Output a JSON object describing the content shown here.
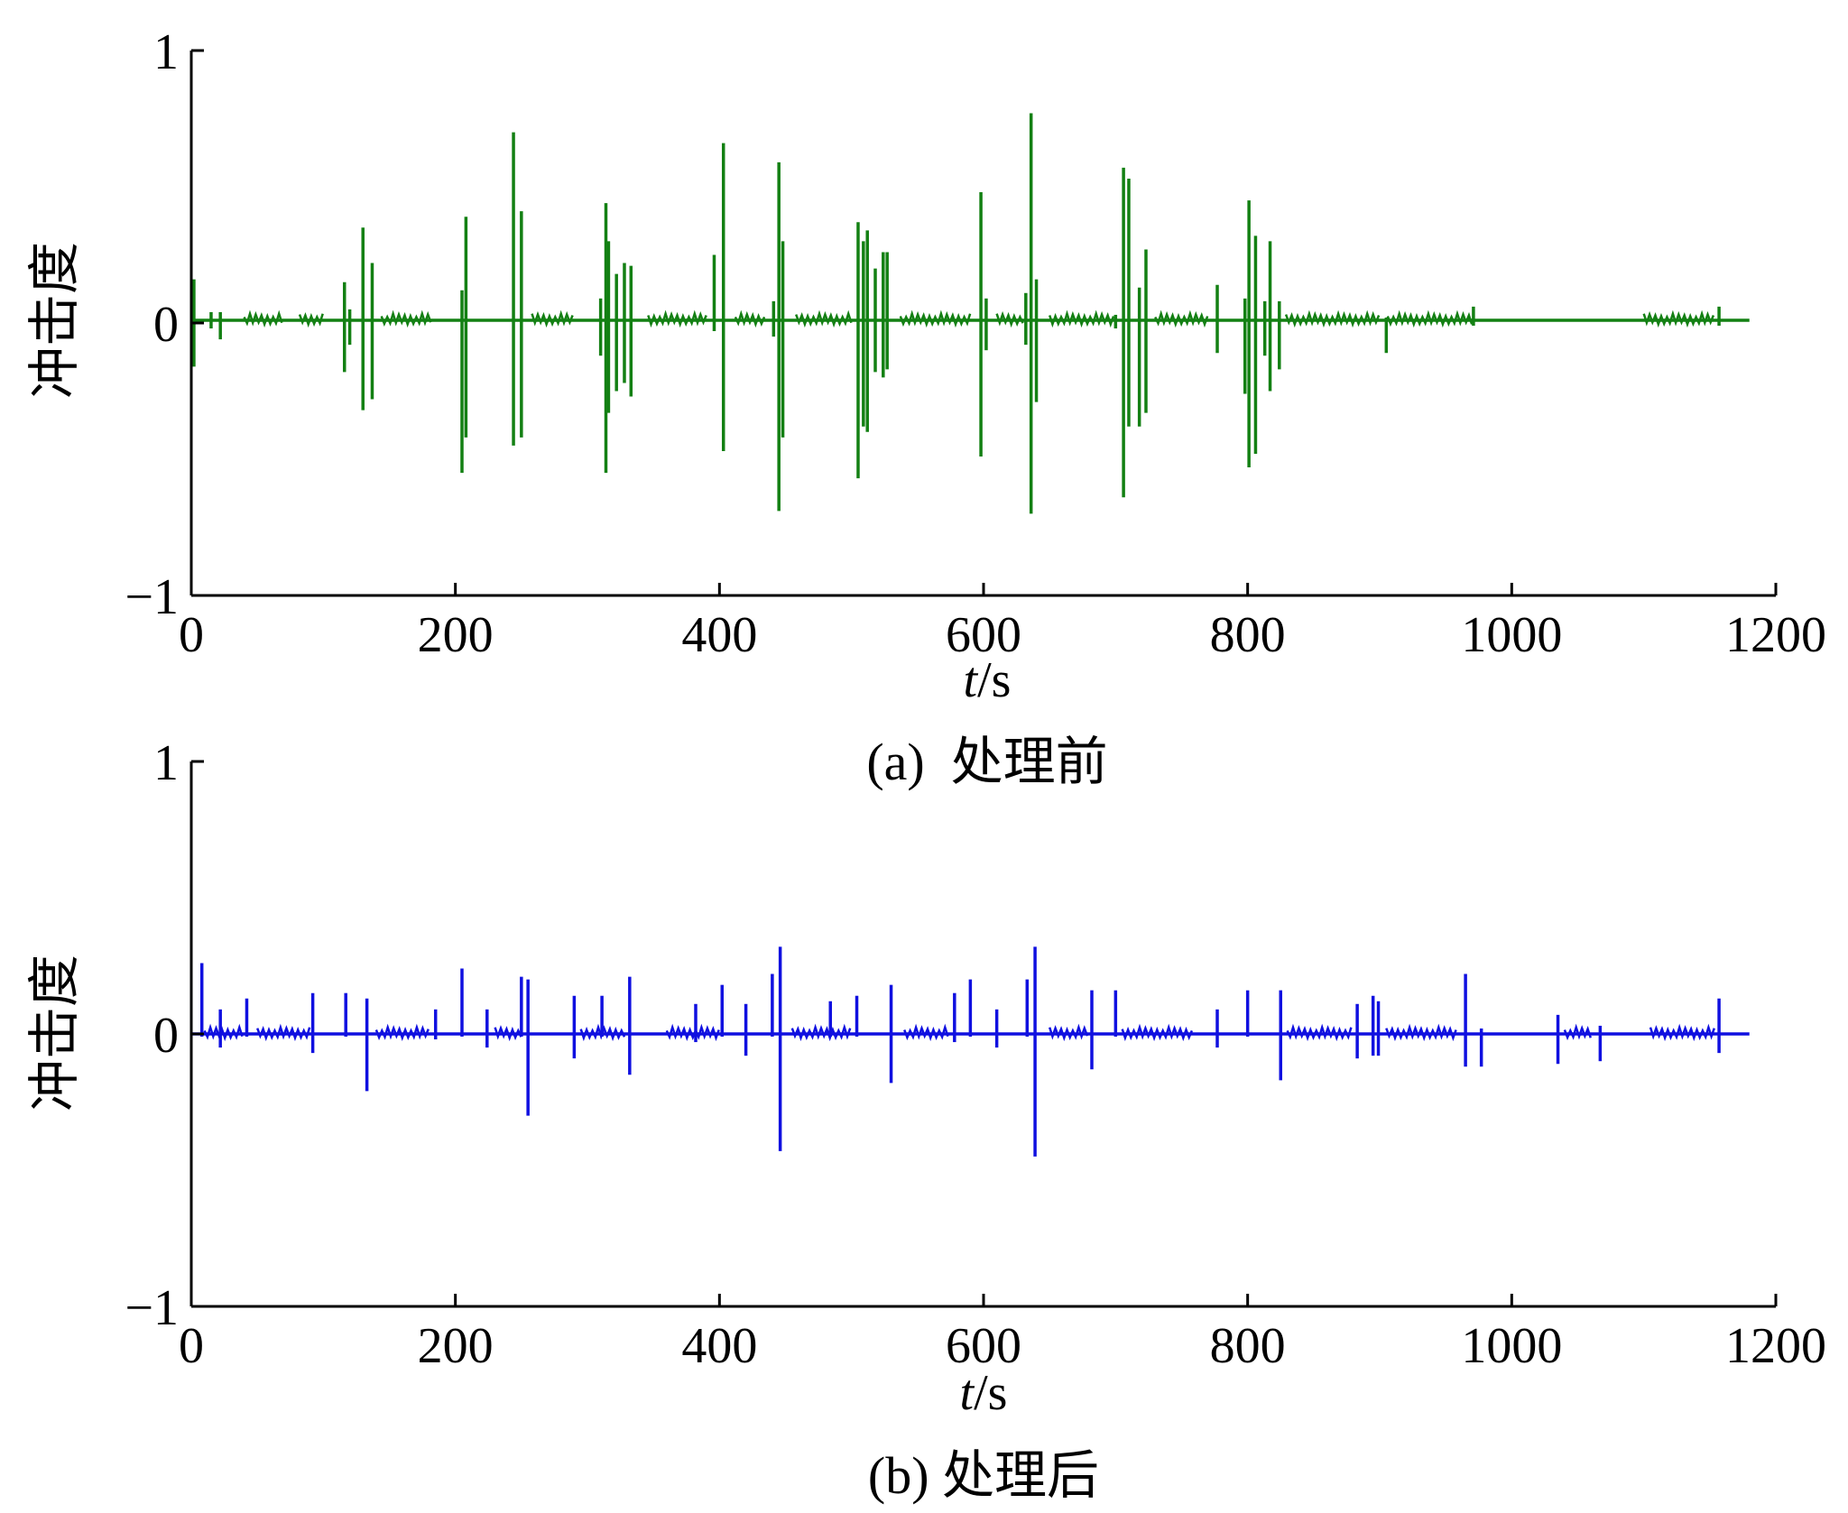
{
  "chart_data": [
    {
      "type": "line",
      "panel": "a",
      "caption": "(a)  处理前",
      "ylabel": "冲击度",
      "xlabel_italic": "t",
      "xlabel_unit": "/s",
      "xlim": [
        0,
        1200
      ],
      "ylim": [
        -1,
        1
      ],
      "xticks": [
        0,
        200,
        400,
        600,
        800,
        1000,
        1200
      ],
      "yticks": [
        1,
        0,
        -1
      ],
      "ytick_labels": [
        "1",
        "0",
        "−1"
      ],
      "color": "#138013",
      "baseline": 0.01,
      "x_end": 1180,
      "spikes": [
        [
          2,
          0.16,
          -0.16
        ],
        [
          15,
          0.04,
          -0.02
        ],
        [
          22,
          0.04,
          -0.06
        ],
        [
          116,
          0.15,
          -0.18
        ],
        [
          120,
          0.05,
          -0.08
        ],
        [
          130,
          0.35,
          -0.32
        ],
        [
          137,
          0.22,
          -0.28
        ],
        [
          205,
          0.12,
          -0.55
        ],
        [
          208,
          0.39,
          -0.42
        ],
        [
          244,
          0.7,
          -0.45
        ],
        [
          250,
          0.41,
          -0.42
        ],
        [
          310,
          0.09,
          -0.12
        ],
        [
          314,
          0.44,
          -0.55
        ],
        [
          316,
          0.3,
          -0.33
        ],
        [
          322,
          0.18,
          -0.25
        ],
        [
          328,
          0.22,
          -0.22
        ],
        [
          333,
          0.21,
          -0.27
        ],
        [
          396,
          0.25,
          -0.03
        ],
        [
          403,
          0.66,
          -0.47
        ],
        [
          441,
          0.08,
          -0.05
        ],
        [
          445,
          0.59,
          -0.69
        ],
        [
          448,
          0.3,
          -0.42
        ],
        [
          505,
          0.37,
          -0.57
        ],
        [
          509,
          0.3,
          -0.38
        ],
        [
          512,
          0.34,
          -0.4
        ],
        [
          518,
          0.2,
          -0.18
        ],
        [
          524,
          0.26,
          -0.2
        ],
        [
          527,
          0.26,
          -0.17
        ],
        [
          598,
          0.48,
          -0.49
        ],
        [
          602,
          0.09,
          -0.1
        ],
        [
          632,
          0.11,
          -0.08
        ],
        [
          636,
          0.77,
          -0.7
        ],
        [
          640,
          0.16,
          -0.29
        ],
        [
          700,
          0.03,
          -0.02
        ],
        [
          706,
          0.57,
          -0.64
        ],
        [
          710,
          0.53,
          -0.38
        ],
        [
          718,
          0.13,
          -0.38
        ],
        [
          723,
          0.27,
          -0.33
        ],
        [
          777,
          0.14,
          -0.11
        ],
        [
          798,
          0.09,
          -0.26
        ],
        [
          801,
          0.45,
          -0.53
        ],
        [
          806,
          0.32,
          -0.48
        ],
        [
          813,
          0.08,
          -0.12
        ],
        [
          817,
          0.3,
          -0.25
        ],
        [
          824,
          0.08,
          -0.17
        ],
        [
          905,
          0.02,
          -0.11
        ],
        [
          971,
          0.06,
          -0.01
        ],
        [
          1157,
          0.06,
          -0.01
        ]
      ],
      "smalls": [
        [
          40,
          70
        ],
        [
          82,
          100
        ],
        [
          144,
          182
        ],
        [
          258,
          290
        ],
        [
          346,
          390
        ],
        [
          412,
          436
        ],
        [
          458,
          500
        ],
        [
          537,
          592
        ],
        [
          610,
          630
        ],
        [
          650,
          700
        ],
        [
          730,
          770
        ],
        [
          829,
          900
        ],
        [
          906,
          970
        ],
        [
          1100,
          1155
        ]
      ]
    },
    {
      "type": "line",
      "panel": "b",
      "caption": "(b) 处理后",
      "ylabel": "冲击度",
      "xlabel_italic": "t",
      "xlabel_unit": "/s",
      "xlim": [
        0,
        1200
      ],
      "ylim": [
        -1,
        1
      ],
      "xticks": [
        0,
        200,
        400,
        600,
        800,
        1000,
        1200
      ],
      "yticks": [
        1,
        0,
        -1
      ],
      "ytick_labels": [
        "1",
        "0",
        "−1"
      ],
      "color": "#1010e0",
      "baseline": 0.0,
      "x_end": 1180,
      "spikes": [
        [
          8,
          0.26,
          -0.01
        ],
        [
          22,
          0.09,
          -0.05
        ],
        [
          42,
          0.13,
          -0.01
        ],
        [
          92,
          0.15,
          -0.07
        ],
        [
          117,
          0.15,
          -0.01
        ],
        [
          133,
          0.13,
          -0.21
        ],
        [
          185,
          0.09,
          -0.02
        ],
        [
          205,
          0.24,
          -0.01
        ],
        [
          224,
          0.09,
          -0.05
        ],
        [
          250,
          0.21,
          -0.01
        ],
        [
          255,
          0.2,
          -0.3
        ],
        [
          290,
          0.14,
          -0.09
        ],
        [
          311,
          0.14,
          -0.01
        ],
        [
          332,
          0.21,
          -0.15
        ],
        [
          382,
          0.11,
          -0.03
        ],
        [
          402,
          0.18,
          -0.01
        ],
        [
          420,
          0.11,
          -0.08
        ],
        [
          440,
          0.22,
          -0.01
        ],
        [
          446,
          0.32,
          -0.43
        ],
        [
          484,
          0.12,
          -0.01
        ],
        [
          504,
          0.14,
          -0.01
        ],
        [
          530,
          0.18,
          -0.18
        ],
        [
          578,
          0.15,
          -0.03
        ],
        [
          590,
          0.2,
          -0.01
        ],
        [
          610,
          0.09,
          -0.05
        ],
        [
          633,
          0.2,
          -0.01
        ],
        [
          639,
          0.32,
          -0.45
        ],
        [
          682,
          0.16,
          -0.13
        ],
        [
          700,
          0.16,
          -0.01
        ],
        [
          777,
          0.09,
          -0.05
        ],
        [
          800,
          0.16,
          -0.01
        ],
        [
          825,
          0.16,
          -0.17
        ],
        [
          883,
          0.11,
          -0.09
        ],
        [
          895,
          0.14,
          -0.08
        ],
        [
          899,
          0.12,
          -0.08
        ],
        [
          965,
          0.22,
          -0.12
        ],
        [
          977,
          0.02,
          -0.12
        ],
        [
          1035,
          0.07,
          -0.11
        ],
        [
          1067,
          0.03,
          -0.1
        ],
        [
          1157,
          0.13,
          -0.07
        ]
      ],
      "smalls": [
        [
          10,
          40
        ],
        [
          50,
          90
        ],
        [
          140,
          180
        ],
        [
          230,
          250
        ],
        [
          295,
          330
        ],
        [
          360,
          400
        ],
        [
          455,
          500
        ],
        [
          540,
          575
        ],
        [
          650,
          680
        ],
        [
          705,
          760
        ],
        [
          830,
          880
        ],
        [
          905,
          960
        ],
        [
          1040,
          1060
        ],
        [
          1105,
          1155
        ]
      ]
    }
  ]
}
